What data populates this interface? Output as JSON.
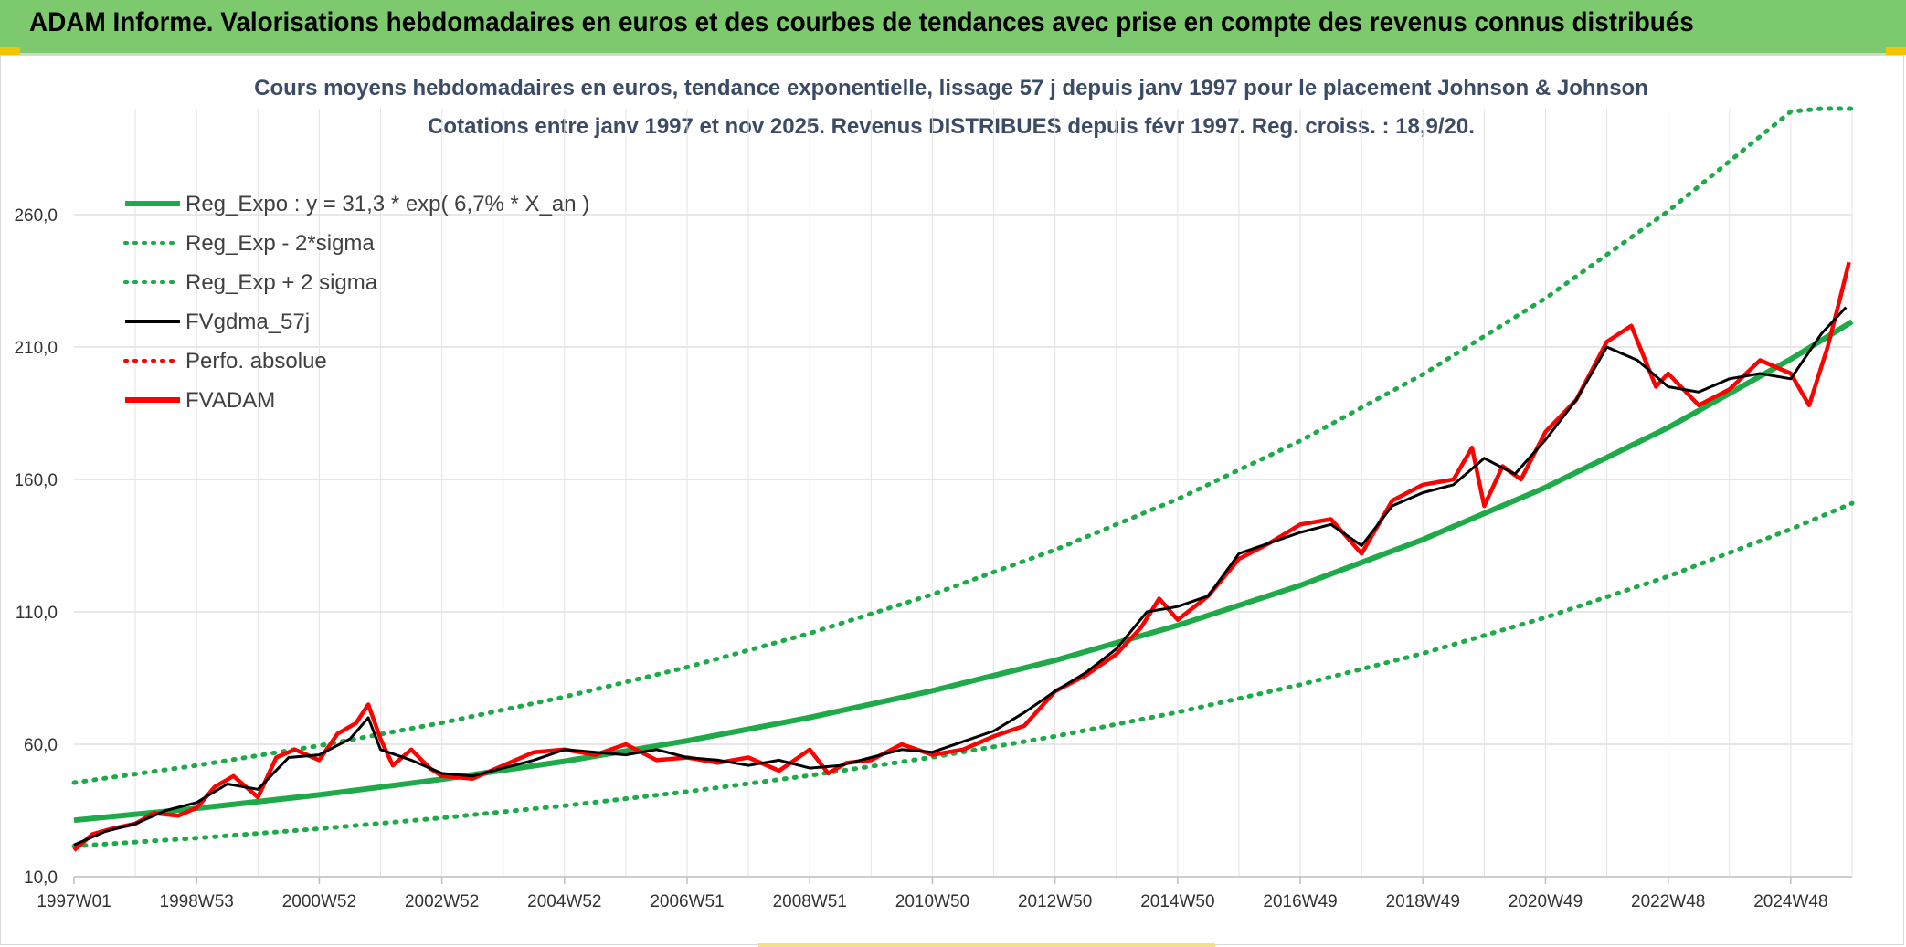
{
  "header": {
    "title": "ADAM Informe. Valorisations hebdomadaires en euros et des courbes de tendances avec prise en compte des revenus connus distribués"
  },
  "colors": {
    "banner": "#7dc96e",
    "trend": "#1faa4a",
    "sigma": "#1faa4a",
    "fvgdma": "#000000",
    "fvadam": "#ff0000",
    "perfo": "#ff0000"
  },
  "chart_data": {
    "type": "line",
    "title": "Cours moyens hebdomadaires en euros, tendance exponentielle, lissage 57 j depuis janv 1997 pour le placement Johnson & Johnson",
    "subtitle": "Cotations entre janv 1997 et nov 2025. Revenus DISTRIBUES depuis févr 1997. Reg. croiss. : 18,9/20.",
    "ylim": [
      10,
      300
    ],
    "yticks": [
      "10,0",
      "60,0",
      "110,0",
      "160,0",
      "210,0",
      "260,0"
    ],
    "ytick_values": [
      10,
      60,
      110,
      160,
      210,
      260
    ],
    "xticks": [
      "1997W01",
      "1998W53",
      "2000W52",
      "2002W52",
      "2004W52",
      "2006W51",
      "2008W51",
      "2010W50",
      "2012W50",
      "2014W50",
      "2016W49",
      "2018W49",
      "2020W49",
      "2022W48",
      "2024W48"
    ],
    "xtick_years": [
      1997.0,
      1999.0,
      2001.0,
      2003.0,
      2005.0,
      2007.0,
      2009.0,
      2011.0,
      2013.0,
      2015.0,
      2017.0,
      2019.0,
      2021.0,
      2023.0,
      2025.0
    ],
    "xlim": [
      1997.0,
      2026.0
    ],
    "grid": true,
    "legend_position": "top-left",
    "legend": [
      {
        "label": "Reg_Expo : y = 31,3 * exp( 6,7% *  X_an )",
        "style": "solid-thick",
        "color": "#1faa4a"
      },
      {
        "label": "Reg_Exp - 2*sigma",
        "style": "dotted",
        "color": "#1faa4a"
      },
      {
        "label": "Reg_Exp + 2 sigma",
        "style": "dotted",
        "color": "#1faa4a"
      },
      {
        "label": "FVgdma_57j",
        "style": "solid",
        "color": "#000000"
      },
      {
        "label": "Perfo. absolue",
        "style": "dotted",
        "color": "#ff0000"
      },
      {
        "label": "FVADAM",
        "style": "solid-thick",
        "color": "#ff0000"
      }
    ],
    "series": [
      {
        "name": "Reg_Expo : y = 31,3 * exp( 6,7% *  X_an )",
        "x": [
          1997.0,
          1999.0,
          2001.0,
          2003.0,
          2005.0,
          2007.0,
          2009.0,
          2011.0,
          2013.0,
          2015.0,
          2017.0,
          2019.0,
          2021.0,
          2023.0,
          2025.0,
          2026.0
        ],
        "values": [
          31.3,
          35.8,
          40.9,
          46.8,
          53.6,
          61.3,
          70.1,
          80.2,
          91.7,
          104.9,
          120.0,
          137.3,
          157.0,
          179.6,
          205.4,
          219.6
        ]
      },
      {
        "name": "Reg_Exp - 2*sigma",
        "x": [
          1997.0,
          1999.0,
          2001.0,
          2003.0,
          2005.0,
          2007.0,
          2009.0,
          2011.0,
          2013.0,
          2015.0,
          2017.0,
          2019.0,
          2021.0,
          2023.0,
          2025.0,
          2026.0
        ],
        "values": [
          21.5,
          24.6,
          28.1,
          32.2,
          36.8,
          42.1,
          48.2,
          55.1,
          63.0,
          72.1,
          82.5,
          94.3,
          107.9,
          123.4,
          141.2,
          151.0
        ]
      },
      {
        "name": "Reg_Exp + 2 sigma",
        "x": [
          1997.0,
          1999.0,
          2001.0,
          2003.0,
          2005.0,
          2007.0,
          2009.0,
          2011.0,
          2013.0,
          2015.0,
          2017.0,
          2019.0,
          2021.0,
          2023.0,
          2025.0,
          2025.5,
          2026.0
        ],
        "values": [
          45.5,
          52.0,
          59.5,
          68.1,
          77.9,
          89.1,
          101.9,
          116.6,
          133.4,
          152.6,
          174.6,
          199.7,
          228.4,
          261.3,
          298.9,
          300.0,
          300.0
        ]
      },
      {
        "name": "FVgdma_57j",
        "x": [
          1997.0,
          1997.5,
          1998.0,
          1998.5,
          1999.0,
          1999.5,
          2000.0,
          2000.5,
          2001.0,
          2001.5,
          2001.8,
          2002.0,
          2002.5,
          2003.0,
          2003.5,
          2004.0,
          2004.5,
          2005.0,
          2005.5,
          2006.0,
          2006.5,
          2007.0,
          2007.5,
          2008.0,
          2008.5,
          2009.0,
          2009.5,
          2010.0,
          2010.5,
          2011.0,
          2011.5,
          2012.0,
          2012.5,
          2013.0,
          2013.5,
          2014.0,
          2014.5,
          2015.0,
          2015.5,
          2016.0,
          2016.5,
          2017.0,
          2017.5,
          2018.0,
          2018.5,
          2019.0,
          2019.5,
          2020.0,
          2020.5,
          2021.0,
          2021.5,
          2022.0,
          2022.5,
          2023.0,
          2023.5,
          2024.0,
          2024.5,
          2025.0,
          2025.5,
          2025.9
        ],
        "values": [
          22,
          27,
          30,
          35,
          38,
          45,
          43,
          55,
          56,
          62,
          70,
          58,
          54,
          49,
          48,
          51,
          54,
          58,
          57,
          56,
          58,
          55,
          54,
          52,
          54,
          51,
          52,
          55,
          58,
          57,
          61,
          65,
          72,
          80,
          87,
          96,
          110,
          112,
          116,
          132,
          136,
          140,
          143,
          135,
          150,
          155,
          158,
          168,
          162,
          175,
          190,
          210,
          205,
          195,
          193,
          198,
          200,
          198,
          215,
          225
        ]
      },
      {
        "name": "FVADAM",
        "x": [
          1997.0,
          1997.3,
          1997.6,
          1998.0,
          1998.3,
          1998.7,
          1999.0,
          1999.3,
          1999.6,
          2000.0,
          2000.3,
          2000.6,
          2001.0,
          2001.3,
          2001.6,
          2001.8,
          2002.0,
          2002.2,
          2002.5,
          2002.8,
          2003.0,
          2003.5,
          2004.0,
          2004.5,
          2005.0,
          2005.5,
          2006.0,
          2006.5,
          2007.0,
          2007.5,
          2008.0,
          2008.5,
          2009.0,
          2009.3,
          2009.6,
          2010.0,
          2010.5,
          2011.0,
          2011.5,
          2012.0,
          2012.5,
          2013.0,
          2013.5,
          2014.0,
          2014.4,
          2014.7,
          2015.0,
          2015.5,
          2016.0,
          2016.5,
          2017.0,
          2017.5,
          2018.0,
          2018.5,
          2019.0,
          2019.5,
          2019.8,
          2020.0,
          2020.3,
          2020.6,
          2021.0,
          2021.5,
          2022.0,
          2022.4,
          2022.8,
          2023.0,
          2023.5,
          2024.0,
          2024.5,
          2025.0,
          2025.3,
          2025.6,
          2025.8,
          2025.95
        ],
        "values": [
          20,
          26,
          28,
          30,
          34,
          33,
          36,
          44,
          48,
          40,
          55,
          58,
          54,
          64,
          68,
          75,
          62,
          52,
          58,
          51,
          48,
          47,
          52,
          57,
          58,
          56,
          60,
          54,
          55,
          53,
          55,
          50,
          58,
          49,
          53,
          54,
          60,
          56,
          58,
          63,
          67,
          80,
          86,
          94,
          104,
          115,
          107,
          116,
          130,
          136,
          143,
          145,
          132,
          152,
          158,
          160,
          172,
          150,
          165,
          160,
          178,
          190,
          212,
          218,
          195,
          200,
          188,
          194,
          205,
          200,
          188,
          210,
          228,
          242
        ]
      }
    ]
  }
}
